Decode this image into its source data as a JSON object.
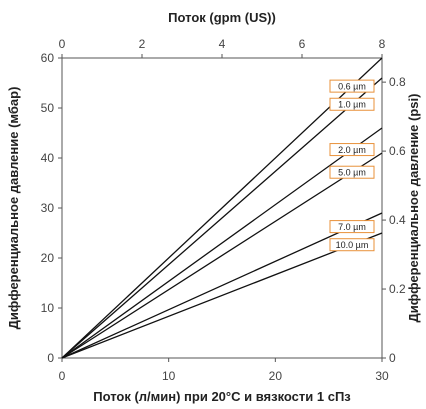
{
  "chart_data": {
    "type": "line",
    "xlabel_bottom": "Поток (л/мин) при 20°C и вязкости 1 сПз",
    "xlabel_top": "Поток (gpm (US))",
    "ylabel_left": "Дифференциальное давление (мбар)",
    "ylabel_right": "Дифференциальное давление (psi)",
    "x_bottom": {
      "lim": [
        0,
        30
      ],
      "ticks": [
        0,
        10,
        20,
        30
      ]
    },
    "x_top": {
      "lim": [
        0,
        8
      ],
      "ticks": [
        0,
        2,
        4,
        6,
        8
      ]
    },
    "y_left": {
      "lim": [
        0,
        60
      ],
      "ticks": [
        0,
        10,
        20,
        30,
        40,
        50,
        60
      ]
    },
    "y_right": {
      "lim": [
        0,
        0.87
      ],
      "ticks": [
        0,
        0.2,
        0.4,
        0.6,
        0.8
      ],
      "tick_labels": [
        "0",
        "0.2",
        "0.4",
        "0.6",
        "0.8"
      ]
    },
    "grid": false,
    "label_color": "#e8913a",
    "line_color": "#111111",
    "series": [
      {
        "name": "0.6 µm",
        "x": [
          0,
          30
        ],
        "y": [
          0,
          60
        ]
      },
      {
        "name": "1.0 µm",
        "x": [
          0,
          30
        ],
        "y": [
          0,
          56
        ]
      },
      {
        "name": "2.0 µm",
        "x": [
          0,
          30
        ],
        "y": [
          0,
          46
        ]
      },
      {
        "name": "5.0 µm",
        "x": [
          0,
          30
        ],
        "y": [
          0,
          41
        ]
      },
      {
        "name": "7.0 µm",
        "x": [
          0,
          30
        ],
        "y": [
          0,
          29
        ]
      },
      {
        "name": "10.0 µm",
        "x": [
          0,
          30
        ],
        "y": [
          0,
          25
        ]
      }
    ]
  }
}
